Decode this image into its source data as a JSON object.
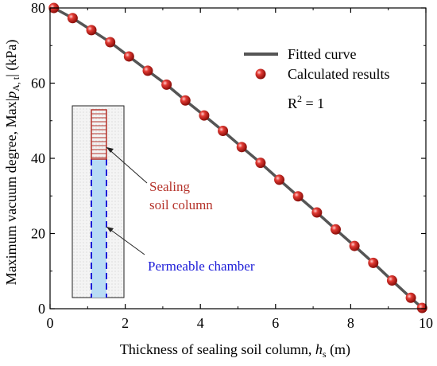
{
  "chart_data": {
    "type": "line",
    "xlabel": "Thickness of sealing soil column, ",
    "xlabel_var": "h",
    "xlabel_sub": "s",
    "xlabel_unit": " (m)",
    "ylabel": "Maximum vacuum degree, Max|",
    "ylabel_var": "p",
    "ylabel_sub": "A, t",
    "ylabel_unit": "| (kPa)",
    "xlim": [
      0,
      10
    ],
    "ylim": [
      0,
      80
    ],
    "xticks": [
      0,
      2,
      4,
      6,
      8,
      10
    ],
    "yticks": [
      0,
      20,
      40,
      60,
      80
    ],
    "legend_position": "top-right",
    "series": [
      {
        "name": "Fitted curve",
        "kind": "line",
        "color": "#555555",
        "x": [
          0.1,
          0.6,
          1.1,
          1.6,
          2.1,
          2.6,
          3.1,
          3.6,
          4.1,
          4.6,
          5.1,
          5.6,
          6.1,
          6.6,
          7.1,
          7.6,
          8.1,
          8.6,
          9.1,
          9.6,
          9.9
        ],
        "y": [
          80.0,
          77.3,
          74.1,
          70.9,
          67.1,
          63.3,
          59.6,
          55.4,
          51.4,
          47.3,
          43.0,
          38.8,
          34.3,
          29.9,
          25.6,
          21.1,
          16.7,
          12.2,
          7.5,
          2.9,
          0.2
        ]
      },
      {
        "name": "Calculated results",
        "kind": "scatter",
        "color": "#cc1f1a",
        "x": [
          0.1,
          0.6,
          1.1,
          1.6,
          2.1,
          2.6,
          3.1,
          3.6,
          4.1,
          4.6,
          5.1,
          5.6,
          6.1,
          6.6,
          7.1,
          7.6,
          8.1,
          8.6,
          9.1,
          9.6,
          9.9
        ],
        "y": [
          80.0,
          77.3,
          74.1,
          70.9,
          67.1,
          63.3,
          59.6,
          55.4,
          51.4,
          47.3,
          43.0,
          38.8,
          34.3,
          29.9,
          25.6,
          21.1,
          16.7,
          12.2,
          7.5,
          2.9,
          0.2
        ]
      }
    ],
    "annotation": {
      "r2_text": "R",
      "r2_sup": "2",
      "r2_value": " = 1"
    },
    "inset": {
      "sealing_label_line1": "Sealing",
      "sealing_label_line2": "soil column",
      "chamber_label": "Permeable chamber",
      "sealing_color": "#b5332b",
      "chamber_color": "#1c1cd8"
    }
  }
}
